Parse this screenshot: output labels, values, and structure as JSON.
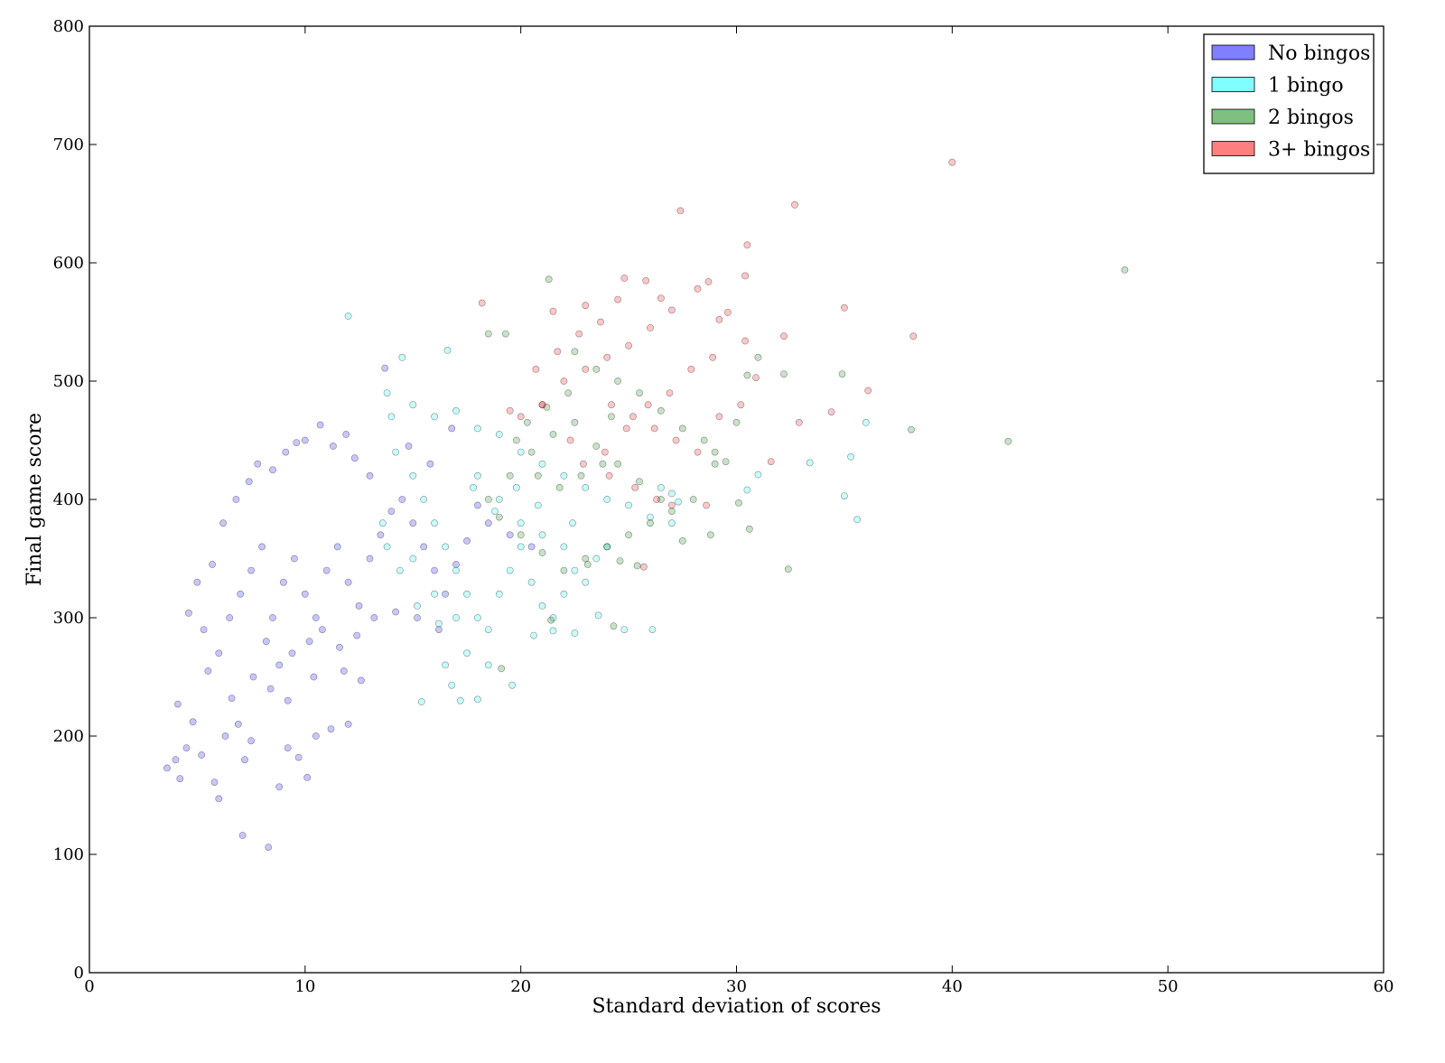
{
  "chart_data": {
    "type": "scatter",
    "title": "",
    "xlabel": "Standard deviation of scores",
    "ylabel": "Final game score",
    "xlim": [
      0,
      60
    ],
    "ylim": [
      0,
      800
    ],
    "xticks": [
      0,
      10,
      20,
      30,
      40,
      50,
      60
    ],
    "yticks": [
      0,
      100,
      200,
      300,
      400,
      500,
      600,
      700,
      800
    ],
    "grid": false,
    "legend_position": "top-right",
    "series": [
      {
        "name": "No bingos",
        "color": "#0000ff",
        "points": [
          [
            3.6,
            173
          ],
          [
            4.0,
            180
          ],
          [
            4.2,
            164
          ],
          [
            4.1,
            227
          ],
          [
            4.5,
            190
          ],
          [
            4.8,
            212
          ],
          [
            5.2,
            184
          ],
          [
            5.5,
            255
          ],
          [
            5.8,
            161
          ],
          [
            6.0,
            147
          ],
          [
            6.3,
            200
          ],
          [
            6.6,
            232
          ],
          [
            6.9,
            210
          ],
          [
            7.2,
            180
          ],
          [
            7.5,
            196
          ],
          [
            7.1,
            116
          ],
          [
            8.3,
            106
          ],
          [
            8.8,
            157
          ],
          [
            9.2,
            190
          ],
          [
            9.7,
            182
          ],
          [
            10.1,
            165
          ],
          [
            10.5,
            200
          ],
          [
            11.2,
            206
          ],
          [
            12.0,
            210
          ],
          [
            12.6,
            247
          ],
          [
            4.6,
            304
          ],
          [
            5.0,
            330
          ],
          [
            5.3,
            290
          ],
          [
            5.7,
            345
          ],
          [
            6.2,
            380
          ],
          [
            6.8,
            400
          ],
          [
            7.4,
            415
          ],
          [
            7.8,
            430
          ],
          [
            8.5,
            425
          ],
          [
            9.1,
            440
          ],
          [
            9.6,
            448
          ],
          [
            10.0,
            450
          ],
          [
            10.7,
            463
          ],
          [
            11.3,
            445
          ],
          [
            11.9,
            455
          ],
          [
            12.3,
            435
          ],
          [
            13.0,
            420
          ],
          [
            13.7,
            511
          ],
          [
            6.0,
            270
          ],
          [
            6.5,
            300
          ],
          [
            7.0,
            320
          ],
          [
            7.5,
            340
          ],
          [
            8.0,
            360
          ],
          [
            8.5,
            300
          ],
          [
            9.0,
            330
          ],
          [
            9.5,
            350
          ],
          [
            10.0,
            320
          ],
          [
            10.5,
            300
          ],
          [
            11.0,
            340
          ],
          [
            11.5,
            360
          ],
          [
            12.0,
            330
          ],
          [
            12.5,
            310
          ],
          [
            13.0,
            350
          ],
          [
            13.5,
            370
          ],
          [
            14.0,
            390
          ],
          [
            14.5,
            400
          ],
          [
            15.0,
            380
          ],
          [
            15.5,
            360
          ],
          [
            16.0,
            340
          ],
          [
            16.5,
            320
          ],
          [
            17.0,
            345
          ],
          [
            17.5,
            365
          ],
          [
            18.0,
            395
          ],
          [
            18.5,
            380
          ],
          [
            19.5,
            370
          ],
          [
            20.5,
            360
          ],
          [
            8.2,
            280
          ],
          [
            8.8,
            260
          ],
          [
            9.4,
            270
          ],
          [
            10.2,
            280
          ],
          [
            10.8,
            290
          ],
          [
            11.6,
            275
          ],
          [
            12.4,
            285
          ],
          [
            13.2,
            300
          ],
          [
            14.2,
            305
          ],
          [
            15.2,
            300
          ],
          [
            16.2,
            290
          ],
          [
            16.8,
            460
          ],
          [
            15.8,
            430
          ],
          [
            14.8,
            445
          ],
          [
            7.6,
            250
          ],
          [
            8.4,
            240
          ],
          [
            9.2,
            230
          ],
          [
            10.4,
            250
          ],
          [
            11.8,
            255
          ]
        ]
      },
      {
        "name": "1 bingo",
        "color": "#00ffff",
        "points": [
          [
            12.0,
            555
          ],
          [
            14.5,
            520
          ],
          [
            16.6,
            526
          ],
          [
            13.8,
            490
          ],
          [
            14.0,
            470
          ],
          [
            15.0,
            480
          ],
          [
            16.0,
            470
          ],
          [
            17.0,
            475
          ],
          [
            18.0,
            460
          ],
          [
            19.0,
            455
          ],
          [
            20.0,
            440
          ],
          [
            21.0,
            430
          ],
          [
            22.0,
            420
          ],
          [
            23.0,
            410
          ],
          [
            24.0,
            400
          ],
          [
            25.0,
            395
          ],
          [
            26.0,
            385
          ],
          [
            27.0,
            380
          ],
          [
            14.2,
            440
          ],
          [
            15.0,
            420
          ],
          [
            15.5,
            400
          ],
          [
            16.0,
            380
          ],
          [
            16.5,
            360
          ],
          [
            17.0,
            340
          ],
          [
            17.5,
            320
          ],
          [
            18.0,
            300
          ],
          [
            18.5,
            290
          ],
          [
            19.0,
            320
          ],
          [
            19.5,
            340
          ],
          [
            20.0,
            360
          ],
          [
            20.5,
            330
          ],
          [
            21.0,
            310
          ],
          [
            21.5,
            300
          ],
          [
            22.0,
            320
          ],
          [
            22.5,
            340
          ],
          [
            23.0,
            330
          ],
          [
            23.5,
            350
          ],
          [
            24.0,
            360
          ],
          [
            15.0,
            350
          ],
          [
            16.0,
            320
          ],
          [
            17.0,
            300
          ],
          [
            17.5,
            270
          ],
          [
            16.5,
            260
          ],
          [
            15.4,
            229
          ],
          [
            16.8,
            243
          ],
          [
            17.2,
            230
          ],
          [
            18.0,
            231
          ],
          [
            18.5,
            260
          ],
          [
            19.6,
            243
          ],
          [
            20.6,
            285
          ],
          [
            21.5,
            289
          ],
          [
            22.5,
            287
          ],
          [
            23.6,
            302
          ],
          [
            24.8,
            290
          ],
          [
            26.1,
            290
          ],
          [
            26.5,
            410
          ],
          [
            27.0,
            405
          ],
          [
            27.3,
            398
          ],
          [
            30.5,
            408
          ],
          [
            31.0,
            421
          ],
          [
            33.4,
            431
          ],
          [
            35.0,
            403
          ],
          [
            35.6,
            383
          ],
          [
            35.3,
            436
          ],
          [
            36.0,
            465
          ],
          [
            18.0,
            420
          ],
          [
            19.0,
            400
          ],
          [
            20.0,
            380
          ],
          [
            21.0,
            370
          ],
          [
            22.0,
            360
          ],
          [
            13.6,
            380
          ],
          [
            13.8,
            360
          ],
          [
            14.4,
            340
          ],
          [
            15.2,
            310
          ],
          [
            16.2,
            295
          ],
          [
            17.8,
            410
          ],
          [
            18.8,
            390
          ],
          [
            19.8,
            410
          ],
          [
            20.8,
            395
          ],
          [
            22.4,
            380
          ]
        ]
      },
      {
        "name": "2 bingos",
        "color": "#008000",
        "points": [
          [
            21.3,
            586
          ],
          [
            19.3,
            540
          ],
          [
            18.5,
            540
          ],
          [
            22.5,
            525
          ],
          [
            23.5,
            510
          ],
          [
            24.5,
            500
          ],
          [
            25.5,
            490
          ],
          [
            26.5,
            475
          ],
          [
            27.5,
            460
          ],
          [
            28.5,
            450
          ],
          [
            29.0,
            440
          ],
          [
            29.5,
            432
          ],
          [
            30.0,
            465
          ],
          [
            30.5,
            505
          ],
          [
            31.0,
            520
          ],
          [
            32.2,
            506
          ],
          [
            34.9,
            506
          ],
          [
            38.1,
            459
          ],
          [
            42.6,
            449
          ],
          [
            48.0,
            594
          ],
          [
            32.4,
            341
          ],
          [
            30.6,
            375
          ],
          [
            30.1,
            397
          ],
          [
            29.0,
            430
          ],
          [
            28.0,
            400
          ],
          [
            27.0,
            390
          ],
          [
            26.0,
            380
          ],
          [
            25.0,
            370
          ],
          [
            24.0,
            360
          ],
          [
            23.0,
            350
          ],
          [
            22.0,
            340
          ],
          [
            21.0,
            355
          ],
          [
            20.0,
            370
          ],
          [
            19.0,
            385
          ],
          [
            18.5,
            400
          ],
          [
            19.5,
            420
          ],
          [
            20.5,
            440
          ],
          [
            21.5,
            455
          ],
          [
            22.5,
            465
          ],
          [
            23.5,
            445
          ],
          [
            24.5,
            430
          ],
          [
            25.5,
            415
          ],
          [
            26.5,
            400
          ],
          [
            27.5,
            365
          ],
          [
            28.8,
            370
          ],
          [
            24.3,
            293
          ],
          [
            21.4,
            298
          ],
          [
            19.1,
            257
          ],
          [
            23.1,
            345
          ],
          [
            24.6,
            348
          ],
          [
            25.4,
            344
          ],
          [
            20.8,
            420
          ],
          [
            21.8,
            410
          ],
          [
            22.8,
            420
          ],
          [
            23.8,
            430
          ],
          [
            19.8,
            450
          ],
          [
            20.3,
            465
          ],
          [
            21.2,
            478
          ],
          [
            22.2,
            490
          ],
          [
            24.2,
            470
          ]
        ]
      },
      {
        "name": "3+ bingos",
        "color": "#ff0000",
        "points": [
          [
            40.0,
            685
          ],
          [
            32.7,
            649
          ],
          [
            27.4,
            644
          ],
          [
            30.5,
            615
          ],
          [
            30.4,
            589
          ],
          [
            28.7,
            584
          ],
          [
            25.8,
            585
          ],
          [
            24.8,
            587
          ],
          [
            26.5,
            570
          ],
          [
            24.5,
            569
          ],
          [
            23.0,
            564
          ],
          [
            18.2,
            566
          ],
          [
            21.5,
            559
          ],
          [
            29.6,
            558
          ],
          [
            35.0,
            562
          ],
          [
            32.2,
            538
          ],
          [
            38.2,
            538
          ],
          [
            36.1,
            492
          ],
          [
            34.4,
            474
          ],
          [
            32.9,
            465
          ],
          [
            31.6,
            432
          ],
          [
            30.4,
            534
          ],
          [
            29.2,
            552
          ],
          [
            28.2,
            578
          ],
          [
            27.0,
            560
          ],
          [
            26.0,
            545
          ],
          [
            25.0,
            530
          ],
          [
            24.0,
            520
          ],
          [
            23.0,
            510
          ],
          [
            22.0,
            500
          ],
          [
            21.0,
            480
          ],
          [
            20.0,
            470
          ],
          [
            19.5,
            475
          ],
          [
            20.7,
            510
          ],
          [
            21.7,
            525
          ],
          [
            22.7,
            540
          ],
          [
            23.7,
            550
          ],
          [
            24.2,
            480
          ],
          [
            25.2,
            470
          ],
          [
            26.2,
            460
          ],
          [
            27.2,
            450
          ],
          [
            28.2,
            440
          ],
          [
            29.2,
            470
          ],
          [
            30.2,
            480
          ],
          [
            30.9,
            503
          ],
          [
            28.9,
            520
          ],
          [
            27.9,
            510
          ],
          [
            26.9,
            490
          ],
          [
            25.9,
            480
          ],
          [
            24.9,
            460
          ],
          [
            23.9,
            440
          ],
          [
            22.9,
            430
          ],
          [
            25.3,
            410
          ],
          [
            26.3,
            400
          ],
          [
            27.0,
            395
          ],
          [
            24.1,
            420
          ],
          [
            25.7,
            343
          ],
          [
            28.6,
            395
          ],
          [
            22.3,
            450
          ],
          [
            21.0,
            480
          ]
        ]
      }
    ]
  }
}
